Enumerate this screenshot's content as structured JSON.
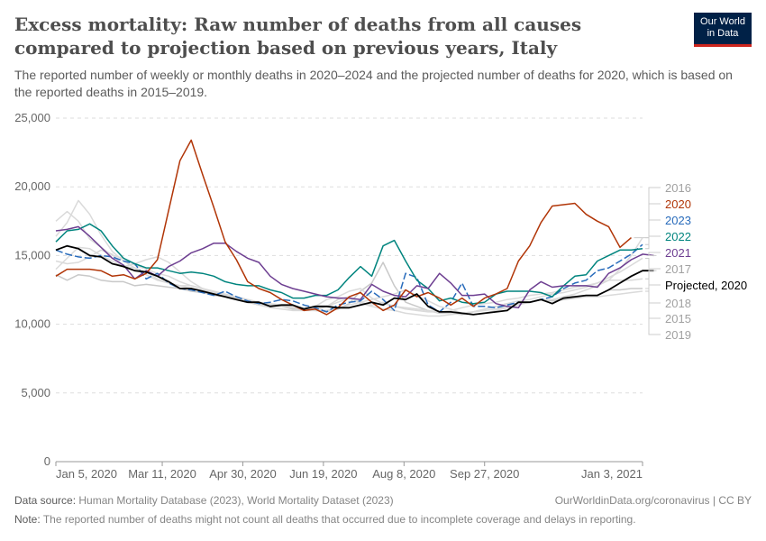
{
  "title": "Excess mortality: Raw number of deaths from all causes compared to projection based on previous years, Italy",
  "subtitle": "The reported number of weekly or monthly deaths in 2020–2024 and the projected number of deaths for 2020, which is based on the reported deaths in 2015–2019.",
  "logo": {
    "line1": "Our World",
    "line2": "in Data",
    "bg": "#002147",
    "accent": "#ce261e"
  },
  "footer": {
    "source_label": "Data source:",
    "source": "Human Mortality Database (2023), World Mortality Dataset (2023)",
    "credit": "OurWorldinData.org/coronavirus | CC BY",
    "note_label": "Note:",
    "note": "The reported number of deaths might not count all deaths that occurred due to incomplete coverage and delays in reporting."
  },
  "chart_data": {
    "type": "line",
    "title": "",
    "xlabel": "",
    "ylabel": "",
    "x_start": "2020-01-05",
    "x_step_days": 7,
    "ylim": [
      0,
      25000
    ],
    "yticks": [
      0,
      5000,
      10000,
      15000,
      20000,
      25000
    ],
    "ytick_labels": [
      "0",
      "5,000",
      "10,000",
      "15,000",
      "20,000",
      "25,000"
    ],
    "xticks": [
      "Jan 5, 2020",
      "Mar 11, 2020",
      "Apr 30, 2020",
      "Jun 19, 2020",
      "Aug 8, 2020",
      "Sep 27, 2020",
      "Jan 3, 2021"
    ],
    "xtick_days": [
      0,
      66,
      116,
      166,
      216,
      266,
      364
    ],
    "grid": "horizontal dashed",
    "legend": "right, labels at line ends",
    "series": [
      {
        "name": "2015",
        "color": "#c9c9c9",
        "label_color": "#a1a1a1",
        "values": [
          13600,
          13200,
          13600,
          13500,
          13200,
          13100,
          13100,
          12800,
          12900,
          12800,
          12700,
          12600,
          12400,
          12300,
          12100,
          12000,
          11800,
          11600,
          11400,
          11300,
          11300,
          11100,
          11100,
          11000,
          11000,
          11100,
          11500,
          12400,
          13000,
          14500,
          12800,
          11600,
          11300,
          11000,
          10800,
          10800,
          10700,
          10900,
          11100,
          11300,
          11500,
          11500,
          11600,
          11800,
          11700,
          11800,
          11900,
          12000,
          12100,
          12500,
          12500,
          12600,
          12600
        ]
      },
      {
        "name": "2016",
        "color": "#dadada",
        "label_color": "#a1a1a1",
        "values": [
          17500,
          18200,
          17500,
          16200,
          15600,
          15000,
          14800,
          14300,
          14000,
          13700,
          13500,
          13100,
          12800,
          12600,
          12300,
          12100,
          11900,
          11600,
          11500,
          11300,
          11300,
          11200,
          11100,
          11000,
          10900,
          11200,
          11400,
          11600,
          11800,
          12000,
          12200,
          12500,
          12100,
          11700,
          11300,
          11100,
          10800,
          10700,
          10800,
          11000,
          11200,
          11400,
          11600,
          11800,
          11800,
          12000,
          12200,
          12500,
          12800,
          13200,
          14000,
          15000,
          16300
        ]
      },
      {
        "name": "2017",
        "color": "#dadada",
        "label_color": "#a1a1a1",
        "values": [
          16400,
          17400,
          19000,
          18000,
          16500,
          15300,
          14600,
          14100,
          13600,
          13200,
          13000,
          12800,
          12800,
          12600,
          12400,
          12200,
          12000,
          11800,
          11600,
          11500,
          11400,
          11300,
          11200,
          11300,
          11800,
          12000,
          12400,
          12600,
          11900,
          11500,
          11300,
          11200,
          11100,
          11000,
          10900,
          10800,
          10800,
          10900,
          11100,
          11300,
          11500,
          11700,
          11800,
          12000,
          12200,
          12300,
          12500,
          12700,
          13000,
          13400,
          13800,
          14300,
          14800
        ]
      },
      {
        "name": "2018",
        "color": "#dadada",
        "label_color": "#a1a1a1",
        "values": [
          14600,
          14400,
          14500,
          14900,
          15400,
          15100,
          14200,
          14400,
          14700,
          14900,
          14500,
          13800,
          13100,
          12600,
          12300,
          12100,
          11900,
          11800,
          11600,
          11400,
          11300,
          11200,
          11100,
          11100,
          11300,
          11600,
          11900,
          11600,
          11400,
          11600,
          11300,
          11100,
          11000,
          10900,
          10900,
          11000,
          11200,
          11400,
          11500,
          11600,
          11800,
          11900,
          12100,
          12200,
          12300,
          12500,
          12700,
          12800,
          13000,
          13200,
          13200,
          13200,
          13300
        ]
      },
      {
        "name": "2019",
        "color": "#dadada",
        "label_color": "#a1a1a1",
        "values": [
          14000,
          14800,
          15600,
          15500,
          15000,
          14600,
          14200,
          14100,
          13800,
          13300,
          13000,
          12800,
          12600,
          12500,
          12300,
          12100,
          11900,
          11700,
          11400,
          11200,
          11100,
          11000,
          11000,
          11000,
          11300,
          11800,
          12000,
          11500,
          11300,
          11100,
          11000,
          10800,
          10700,
          10600,
          10600,
          10700,
          10800,
          10900,
          11000,
          11100,
          11300,
          11500,
          11600,
          11800,
          11800,
          11900,
          12000,
          12000,
          12000,
          12100,
          12200,
          12300,
          12400
        ]
      },
      {
        "name": "2023",
        "color": "#286bbb",
        "label_color": "#286bbb",
        "dashed": true,
        "values": [
          15400,
          15100,
          14900,
          14800,
          15000,
          14900,
          14600,
          14400,
          13300,
          13700,
          13000,
          12600,
          12500,
          12300,
          12100,
          12400,
          12000,
          11700,
          11500,
          11600,
          11800,
          11700,
          11400,
          11200,
          10900,
          11400,
          11600,
          11700,
          12400,
          11800,
          11000,
          13700,
          13400,
          11400,
          10900,
          11600,
          13000,
          11300,
          11300,
          11200,
          11400,
          11600,
          11600,
          11800,
          12000,
          12600,
          13000,
          13200,
          13900,
          14100,
          14600,
          15100,
          15800
        ]
      },
      {
        "name": "2022",
        "color": "#00847e",
        "label_color": "#00847e",
        "values": [
          16000,
          16800,
          16900,
          17300,
          16800,
          15700,
          14800,
          14400,
          14100,
          14100,
          13900,
          13700,
          13800,
          13700,
          13500,
          13100,
          12900,
          12800,
          12800,
          12500,
          12300,
          11900,
          11900,
          12100,
          12100,
          12500,
          13400,
          14200,
          13500,
          15700,
          16100,
          14600,
          13200,
          12600,
          11700,
          11900,
          11600,
          11500,
          11600,
          12200,
          12400,
          12400,
          12400,
          12300,
          12000,
          12800,
          13500,
          13600,
          14600,
          15000,
          15400,
          15400,
          15500
        ]
      },
      {
        "name": "2021",
        "color": "#6d3e91",
        "label_color": "#6d3e91",
        "values": [
          16800,
          16900,
          17100,
          16400,
          15600,
          14800,
          14300,
          13300,
          13900,
          13500,
          14200,
          14600,
          15200,
          15500,
          15900,
          15900,
          15300,
          14800,
          14500,
          13500,
          12900,
          12600,
          12400,
          12200,
          12000,
          11900,
          11900,
          11800,
          12900,
          12400,
          12100,
          12000,
          12800,
          12600,
          13700,
          13000,
          12100,
          12100,
          12200,
          11500,
          11300,
          11200,
          12500,
          13100,
          12700,
          12800,
          12800,
          12800,
          12700,
          13700,
          14100,
          14700,
          15100,
          15000
        ]
      },
      {
        "name": "2020",
        "color": "#b13507",
        "label_color": "#b13507",
        "values": [
          13500,
          14000,
          14000,
          14000,
          13900,
          13500,
          13600,
          13300,
          13700,
          14700,
          18300,
          21900,
          23400,
          20900,
          18500,
          16000,
          14700,
          13100,
          12600,
          12300,
          11800,
          11400,
          11000,
          11100,
          10700,
          11200,
          12000,
          12300,
          11600,
          11000,
          11400,
          12500,
          12000,
          12300,
          11900,
          11400,
          11900,
          11300,
          11900,
          12200,
          12600,
          14600,
          15700,
          17400,
          18600,
          18700,
          18800,
          18000,
          17500,
          17100,
          15600,
          16300
        ]
      },
      {
        "name": "Projected, 2020",
        "color": "#000000",
        "label_color": "#000000",
        "values": [
          15400,
          15700,
          15500,
          15000,
          14900,
          14400,
          14200,
          13900,
          13800,
          13500,
          13100,
          12600,
          12600,
          12400,
          12200,
          12000,
          11800,
          11600,
          11600,
          11300,
          11400,
          11400,
          11100,
          11300,
          11300,
          11200,
          11200,
          11400,
          11600,
          11400,
          11900,
          11800,
          12200,
          11300,
          10900,
          10900,
          10800,
          10700,
          10800,
          10900,
          11000,
          11600,
          11600,
          11800,
          11500,
          11900,
          12000,
          12100,
          12100,
          12500,
          13000,
          13500,
          13900,
          13900
        ]
      }
    ],
    "legend_order": [
      "2016",
      "2020",
      "2023",
      "2022",
      "2021",
      "2017",
      "Projected, 2020",
      "2018",
      "2015",
      "2019"
    ]
  }
}
